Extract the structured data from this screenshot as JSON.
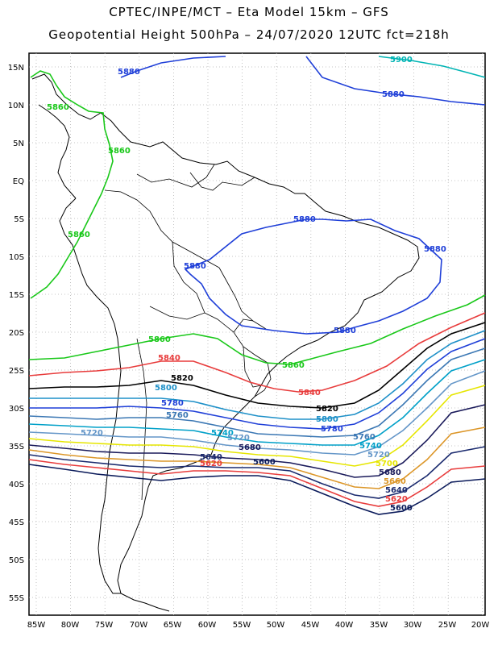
{
  "title_line1": "CPTEC/INPE/MCT –  Eta Model 15km – GFS",
  "title_line2": "Geopotential Height 500hPa – 24/07/2020 12UTC fct=218h",
  "lat_labels": [
    "15N",
    "10N",
    "5N",
    "EQ",
    "5S",
    "10S",
    "15S",
    "20S",
    "25S",
    "30S",
    "35S",
    "40S",
    "45S",
    "50S",
    "55S"
  ],
  "lon_labels": [
    "85W",
    "80W",
    "75W",
    "70W",
    "65W",
    "60W",
    "55W",
    "50W",
    "45W",
    "40W",
    "35W",
    "30W",
    "25W",
    "20W"
  ],
  "contours": [
    {
      "value": "5900",
      "color": "#00b4b4"
    },
    {
      "value": "5880",
      "color": "#1f3fd8"
    },
    {
      "value": "5860",
      "color": "#19c819"
    },
    {
      "value": "5840",
      "color": "#e83c3c"
    },
    {
      "value": "5820",
      "color": "#000000"
    },
    {
      "value": "5800",
      "color": "#1e90c8"
    },
    {
      "value": "5780",
      "color": "#1f3fd8"
    },
    {
      "value": "5760",
      "color": "#3c78b4"
    },
    {
      "value": "5740",
      "color": "#00a0c8"
    },
    {
      "value": "5720",
      "color": "#6496c8"
    },
    {
      "value": "5700",
      "color": "#e6e600"
    },
    {
      "value": "5680",
      "color": "#1a1a5a"
    },
    {
      "value": "5660",
      "color": "#dc9628"
    },
    {
      "value": "5640",
      "color": "#1a2a6e"
    },
    {
      "value": "5620",
      "color": "#e83c3c"
    },
    {
      "value": "5600",
      "color": "#0a1a5a"
    }
  ]
}
